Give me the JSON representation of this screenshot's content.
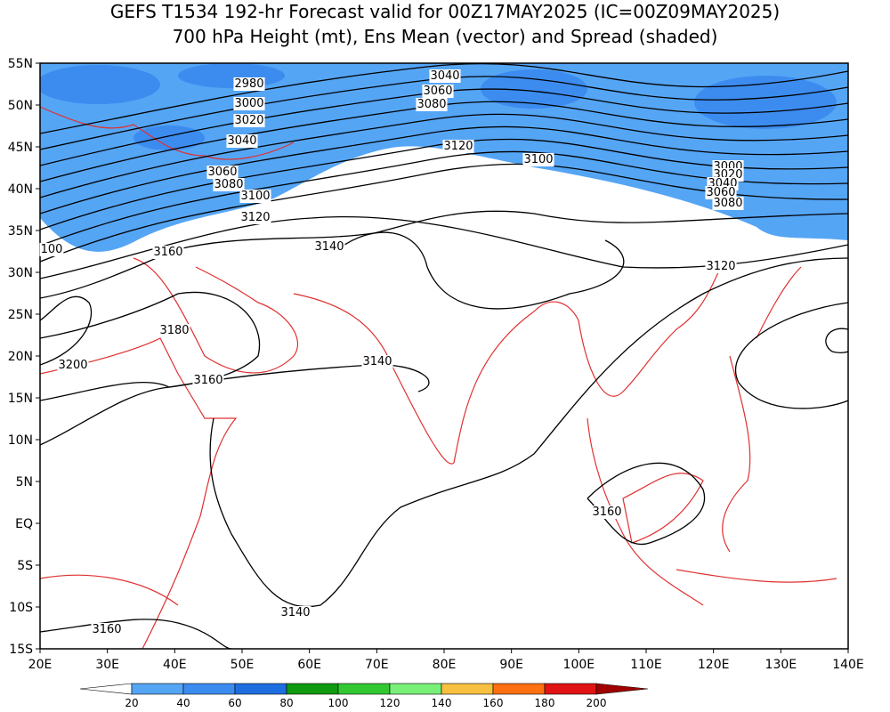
{
  "title": [
    "GEFS T1534 192-hr Forecast valid for 00Z17MAY2025 (IC=00Z09MAY2025)",
    "700 hPa Height (mt), Ens Mean (vector) and Spread (shaded)"
  ],
  "lat_labels": [
    "55N",
    "50N",
    "45N",
    "40N",
    "35N",
    "30N",
    "25N",
    "20N",
    "15N",
    "10N",
    "5N",
    "EQ",
    "5S",
    "10S",
    "15S"
  ],
  "lon_labels": [
    "20E",
    "30E",
    "40E",
    "50E",
    "60E",
    "70E",
    "80E",
    "90E",
    "100E",
    "110E",
    "120E",
    "130E",
    "140E"
  ],
  "contour_labels": [
    "2980",
    "3000",
    "3020",
    "3040",
    "3060",
    "3080",
    "3100",
    "3120",
    "3040",
    "3060",
    "3080",
    "3120",
    "3100",
    "3000",
    "3020",
    "3040",
    "3060",
    "3080",
    "100",
    "3160",
    "3140",
    "3120",
    "3180",
    "3200",
    "3140",
    "3160",
    "3160",
    "3140",
    "3160"
  ],
  "colorbar": {
    "labels": [
      20,
      40,
      60,
      80,
      100,
      120,
      140,
      160,
      180,
      200
    ],
    "colors": [
      "#ffffff",
      "#55a5f5",
      "#3c8cf0",
      "#1e6ee0",
      "#0f9a0f",
      "#32c832",
      "#78f078",
      "#f8c040",
      "#ff7010",
      "#e01414",
      "#a00000"
    ]
  }
}
